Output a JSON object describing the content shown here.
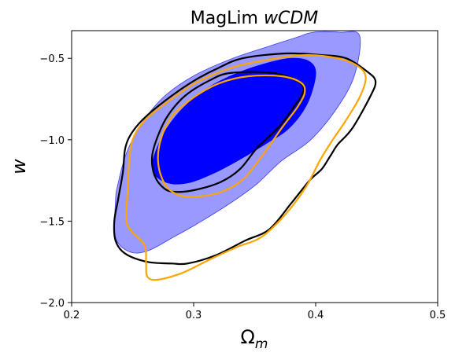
{
  "chart_data": {
    "type": "contour",
    "title_prefix": "MagLim ",
    "title_italic": "wCDM",
    "xlabel_main": "Ω",
    "xlabel_sub": "m",
    "ylabel": "w",
    "xlim": [
      0.2,
      0.5
    ],
    "ylim": [
      -2.0,
      -0.33
    ],
    "xticks": [
      0.2,
      0.3,
      0.4,
      0.5
    ],
    "yticks": [
      -2.0,
      -1.5,
      -1.0,
      -0.5
    ],
    "xtick_labels": [
      "0.2",
      "0.3",
      "0.4",
      "0.5"
    ],
    "ytick_labels": [
      "−2.0",
      "−1.5",
      "−1.0",
      "−0.5"
    ],
    "grid": false,
    "series": [
      {
        "style": "filled",
        "color": "#9999ff",
        "edge_color": "#4040ee",
        "level": "outer",
        "points": [
          [
            0.398,
            -0.34
          ],
          [
            0.42,
            -0.34
          ],
          [
            0.436,
            -0.36
          ],
          [
            0.432,
            -0.6
          ],
          [
            0.418,
            -0.8
          ],
          [
            0.396,
            -1.0
          ],
          [
            0.372,
            -1.13
          ],
          [
            0.352,
            -1.27
          ],
          [
            0.332,
            -1.38
          ],
          [
            0.302,
            -1.52
          ],
          [
            0.283,
            -1.6
          ],
          [
            0.263,
            -1.68
          ],
          [
            0.248,
            -1.69
          ],
          [
            0.236,
            -1.6
          ],
          [
            0.236,
            -1.37
          ],
          [
            0.238,
            -1.27
          ],
          [
            0.244,
            -1.1
          ],
          [
            0.252,
            -0.97
          ],
          [
            0.262,
            -0.85
          ],
          [
            0.278,
            -0.72
          ],
          [
            0.302,
            -0.6
          ],
          [
            0.332,
            -0.5
          ],
          [
            0.36,
            -0.43
          ],
          [
            0.385,
            -0.37
          ]
        ]
      },
      {
        "style": "filled",
        "color": "#0000ff",
        "edge_color": "#0000ff",
        "level": "inner",
        "points": [
          [
            0.38,
            -0.5
          ],
          [
            0.395,
            -0.52
          ],
          [
            0.4,
            -0.6
          ],
          [
            0.393,
            -0.78
          ],
          [
            0.378,
            -0.93
          ],
          [
            0.358,
            -1.03
          ],
          [
            0.338,
            -1.12
          ],
          [
            0.318,
            -1.2
          ],
          [
            0.298,
            -1.26
          ],
          [
            0.282,
            -1.27
          ],
          [
            0.27,
            -1.23
          ],
          [
            0.266,
            -1.16
          ],
          [
            0.27,
            -1.05
          ],
          [
            0.278,
            -0.93
          ],
          [
            0.292,
            -0.8
          ],
          [
            0.312,
            -0.68
          ],
          [
            0.336,
            -0.59
          ],
          [
            0.36,
            -0.53
          ]
        ]
      },
      {
        "style": "line",
        "color": "#000000",
        "level": "outer",
        "points": [
          [
            0.34,
            -0.5
          ],
          [
            0.375,
            -0.47
          ],
          [
            0.405,
            -0.48
          ],
          [
            0.425,
            -0.5
          ],
          [
            0.442,
            -0.58
          ],
          [
            0.449,
            -0.64
          ],
          [
            0.445,
            -0.73
          ],
          [
            0.43,
            -0.93
          ],
          [
            0.418,
            -1.03
          ],
          [
            0.412,
            -1.1
          ],
          [
            0.405,
            -1.18
          ],
          [
            0.395,
            -1.25
          ],
          [
            0.38,
            -1.39
          ],
          [
            0.362,
            -1.55
          ],
          [
            0.342,
            -1.62
          ],
          [
            0.318,
            -1.71
          ],
          [
            0.295,
            -1.76
          ],
          [
            0.282,
            -1.76
          ],
          [
            0.262,
            -1.75
          ],
          [
            0.244,
            -1.7
          ],
          [
            0.236,
            -1.62
          ],
          [
            0.235,
            -1.5
          ],
          [
            0.238,
            -1.37
          ],
          [
            0.242,
            -1.2
          ],
          [
            0.244,
            -1.05
          ],
          [
            0.25,
            -0.95
          ],
          [
            0.262,
            -0.85
          ],
          [
            0.282,
            -0.73
          ],
          [
            0.302,
            -0.63
          ],
          [
            0.32,
            -0.56
          ]
        ]
      },
      {
        "style": "line",
        "color": "#000000",
        "level": "inner",
        "points": [
          [
            0.33,
            -0.59
          ],
          [
            0.365,
            -0.59
          ],
          [
            0.385,
            -0.64
          ],
          [
            0.39,
            -0.7
          ],
          [
            0.382,
            -0.8
          ],
          [
            0.37,
            -0.92
          ],
          [
            0.352,
            -1.05
          ],
          [
            0.338,
            -1.18
          ],
          [
            0.322,
            -1.26
          ],
          [
            0.3,
            -1.31
          ],
          [
            0.285,
            -1.32
          ],
          [
            0.276,
            -1.3
          ],
          [
            0.268,
            -1.22
          ],
          [
            0.266,
            -1.1
          ],
          [
            0.271,
            -0.97
          ],
          [
            0.279,
            -0.85
          ],
          [
            0.293,
            -0.73
          ],
          [
            0.312,
            -0.64
          ]
        ]
      },
      {
        "style": "line",
        "color": "#ffa500",
        "level": "outer",
        "points": [
          [
            0.36,
            -0.51
          ],
          [
            0.392,
            -0.48
          ],
          [
            0.418,
            -0.5
          ],
          [
            0.435,
            -0.55
          ],
          [
            0.441,
            -0.62
          ],
          [
            0.436,
            -0.74
          ],
          [
            0.424,
            -0.89
          ],
          [
            0.414,
            -1.0
          ],
          [
            0.404,
            -1.12
          ],
          [
            0.392,
            -1.29
          ],
          [
            0.375,
            -1.46
          ],
          [
            0.355,
            -1.6
          ],
          [
            0.335,
            -1.66
          ],
          [
            0.312,
            -1.74
          ],
          [
            0.29,
            -1.82
          ],
          [
            0.27,
            -1.86
          ],
          [
            0.262,
            -1.84
          ],
          [
            0.261,
            -1.76
          ],
          [
            0.26,
            -1.65
          ],
          [
            0.25,
            -1.57
          ],
          [
            0.245,
            -1.5
          ],
          [
            0.246,
            -1.3
          ],
          [
            0.247,
            -1.15
          ],
          [
            0.25,
            -1.0
          ],
          [
            0.26,
            -0.88
          ],
          [
            0.28,
            -0.76
          ],
          [
            0.302,
            -0.65
          ],
          [
            0.33,
            -0.56
          ]
        ]
      },
      {
        "style": "line",
        "color": "#ffa500",
        "level": "inner",
        "points": [
          [
            0.345,
            -0.61
          ],
          [
            0.372,
            -0.61
          ],
          [
            0.388,
            -0.65
          ],
          [
            0.391,
            -0.71
          ],
          [
            0.385,
            -0.8
          ],
          [
            0.372,
            -0.93
          ],
          [
            0.357,
            -1.09
          ],
          [
            0.341,
            -1.24
          ],
          [
            0.323,
            -1.32
          ],
          [
            0.302,
            -1.35
          ],
          [
            0.288,
            -1.34
          ],
          [
            0.277,
            -1.28
          ],
          [
            0.271,
            -1.15
          ],
          [
            0.273,
            -1.0
          ],
          [
            0.283,
            -0.85
          ],
          [
            0.302,
            -0.73
          ],
          [
            0.322,
            -0.65
          ]
        ]
      }
    ]
  }
}
